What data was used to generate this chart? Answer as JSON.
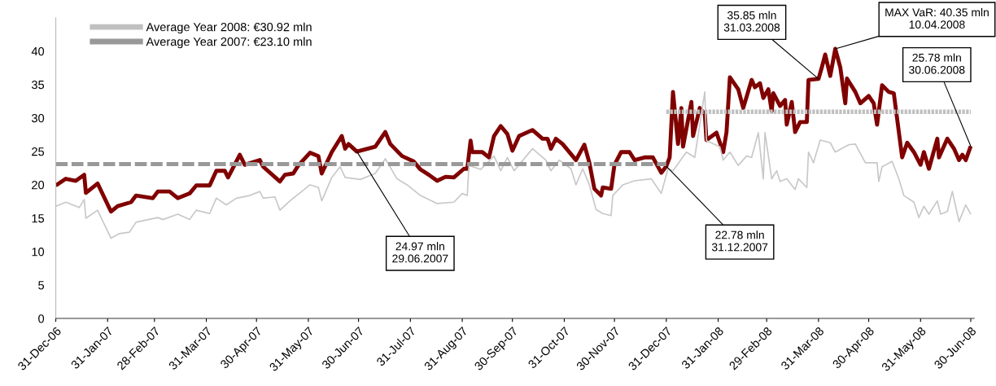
{
  "chart_data": {
    "type": "line",
    "series": [
      {
        "color": "#800000",
        "x": [
          "2006-12-31",
          "2007-01-06",
          "2007-01-12",
          "2007-01-17",
          "2007-01-18",
          "2007-01-25",
          "2007-02-02",
          "2007-02-06",
          "2007-02-14",
          "2007-02-17",
          "2007-02-27",
          "2007-03-02",
          "2007-03-09",
          "2007-03-14",
          "2007-03-21",
          "2007-03-25",
          "2007-04-02",
          "2007-04-06",
          "2007-04-11",
          "2007-04-13",
          "2007-04-20",
          "2007-04-23",
          "2007-05-02",
          "2007-05-04",
          "2007-05-14",
          "2007-05-17",
          "2007-05-22",
          "2007-05-25",
          "2007-06-01",
          "2007-06-06",
          "2007-06-08",
          "2007-06-14",
          "2007-06-20",
          "2007-06-22",
          "2007-06-24",
          "2007-06-29",
          "2007-07-10",
          "2007-07-16",
          "2007-07-19",
          "2007-07-26",
          "2007-08-02",
          "2007-08-06",
          "2007-08-11",
          "2007-08-16",
          "2007-08-21",
          "2007-08-26",
          "2007-09-01",
          "2007-09-03",
          "2007-09-05",
          "2007-09-06",
          "2007-09-12",
          "2007-09-16",
          "2007-09-19",
          "2007-09-23",
          "2007-09-27",
          "2007-09-30",
          "2007-10-04",
          "2007-10-12",
          "2007-10-18",
          "2007-10-21",
          "2007-10-23",
          "2007-10-26",
          "2007-10-30",
          "2007-11-07",
          "2007-11-12",
          "2007-11-15",
          "2007-11-18",
          "2007-11-22",
          "2007-11-23",
          "2007-11-28",
          "2007-11-30",
          "2007-12-04",
          "2007-12-09",
          "2007-12-12",
          "2007-12-18",
          "2007-12-23",
          "2007-12-28",
          "2007-12-31",
          "2008-01-02",
          "2008-01-04",
          "2008-01-07",
          "2008-01-09",
          "2008-01-10",
          "2008-01-15",
          "2008-01-16",
          "2008-01-20",
          "2008-01-23",
          "2008-01-24",
          "2008-01-30",
          "2008-02-03",
          "2008-02-05",
          "2008-02-07",
          "2008-02-12",
          "2008-02-15",
          "2008-02-20",
          "2008-02-22",
          "2008-02-25",
          "2008-02-27",
          "2008-03-01",
          "2008-03-03",
          "2008-03-04",
          "2008-03-08",
          "2008-03-11",
          "2008-03-12",
          "2008-03-15",
          "2008-03-17",
          "2008-03-20",
          "2008-03-24",
          "2008-03-25",
          "2008-03-31",
          "2008-04-02",
          "2008-04-04",
          "2008-04-07",
          "2008-04-10",
          "2008-04-13",
          "2008-04-16",
          "2008-04-17",
          "2008-04-22",
          "2008-04-25",
          "2008-04-30",
          "2008-05-03",
          "2008-05-05",
          "2008-05-08",
          "2008-05-12",
          "2008-05-15",
          "2008-05-20",
          "2008-05-23",
          "2008-05-27",
          "2008-05-31",
          "2008-06-02",
          "2008-06-05",
          "2008-06-10",
          "2008-06-11",
          "2008-06-16",
          "2008-06-20",
          "2008-06-23",
          "2008-06-25",
          "2008-06-27",
          "2008-06-30"
        ],
        "values": [
          19.9,
          20.9,
          20.6,
          21.5,
          18.8,
          20.2,
          16.0,
          16.8,
          17.4,
          18.4,
          18.0,
          19.0,
          19.0,
          18.0,
          18.7,
          19.9,
          19.9,
          22.1,
          22.1,
          21.1,
          24.5,
          23.0,
          23.7,
          22.7,
          20.5,
          21.5,
          21.7,
          22.9,
          24.8,
          24.3,
          21.7,
          24.9,
          27.3,
          25.4,
          26.1,
          24.97,
          25.7,
          27.9,
          26.1,
          24.3,
          23.5,
          22.3,
          21.5,
          20.6,
          21.2,
          21.1,
          22.4,
          22.4,
          26.6,
          24.9,
          24.9,
          24.1,
          27.3,
          28.8,
          27.6,
          25.1,
          27.3,
          28.2,
          26.9,
          26.9,
          25.4,
          26.9,
          26.1,
          23.7,
          26.0,
          23.3,
          19.4,
          18.4,
          19.6,
          19.4,
          23.0,
          24.9,
          24.9,
          23.7,
          24.1,
          24.1,
          21.8,
          22.78,
          24.1,
          33.9,
          26.1,
          31.5,
          25.7,
          32.4,
          27.3,
          31.5,
          30.6,
          26.7,
          27.8,
          24.9,
          27.9,
          36.1,
          34.3,
          31.5,
          35.7,
          34.6,
          35.2,
          33.0,
          34.3,
          31.0,
          33.7,
          31.8,
          32.7,
          29.0,
          32.4,
          27.9,
          29.4,
          29.4,
          35.7,
          35.85,
          37.6,
          39.5,
          36.3,
          40.35,
          37.6,
          32.2,
          35.9,
          33.9,
          32.2,
          33.3,
          32.2,
          29.0,
          34.9,
          33.9,
          33.7,
          24.1,
          26.3,
          24.9,
          23.0,
          24.9,
          22.4,
          26.9,
          24.1,
          26.9,
          25.4,
          23.7,
          24.5,
          23.7,
          25.78
        ]
      },
      {
        "color": "#c8c8c8",
        "x": [
          "2006-12-31",
          "2007-01-06",
          "2007-01-14",
          "2007-01-17",
          "2007-01-18",
          "2007-01-25",
          "2007-02-02",
          "2007-02-07",
          "2007-02-13",
          "2007-02-17",
          "2007-03-02",
          "2007-03-05",
          "2007-03-14",
          "2007-03-21",
          "2007-03-25",
          "2007-04-02",
          "2007-04-06",
          "2007-04-12",
          "2007-04-18",
          "2007-04-26",
          "2007-05-02",
          "2007-05-04",
          "2007-05-11",
          "2007-05-14",
          "2007-05-20",
          "2007-05-26",
          "2007-06-01",
          "2007-06-06",
          "2007-06-08",
          "2007-06-14",
          "2007-06-19",
          "2007-06-22",
          "2007-07-01",
          "2007-07-10",
          "2007-07-16",
          "2007-07-23",
          "2007-07-29",
          "2007-08-06",
          "2007-08-16",
          "2007-08-26",
          "2007-08-31",
          "2007-09-03",
          "2007-09-04",
          "2007-09-11",
          "2007-09-19",
          "2007-09-23",
          "2007-09-27",
          "2007-10-01",
          "2007-10-12",
          "2007-10-20",
          "2007-10-23",
          "2007-10-28",
          "2007-11-04",
          "2007-11-07",
          "2007-11-11",
          "2007-11-15",
          "2007-11-19",
          "2007-11-23",
          "2007-11-28",
          "2007-11-29",
          "2007-12-05",
          "2007-12-12",
          "2007-12-22",
          "2007-12-28",
          "2008-01-01",
          "2008-01-04",
          "2008-01-12",
          "2008-01-17",
          "2008-01-23",
          "2008-01-24",
          "2008-02-01",
          "2008-02-03",
          "2008-02-07",
          "2008-02-12",
          "2008-02-17",
          "2008-02-20",
          "2008-02-24",
          "2008-02-27",
          "2008-02-28",
          "2008-03-03",
          "2008-03-06",
          "2008-03-08",
          "2008-03-12",
          "2008-03-17",
          "2008-03-19",
          "2008-03-24",
          "2008-03-25",
          "2008-03-28",
          "2008-04-01",
          "2008-04-07",
          "2008-04-10",
          "2008-04-18",
          "2008-04-22",
          "2008-04-28",
          "2008-05-05",
          "2008-05-06",
          "2008-05-08",
          "2008-05-14",
          "2008-05-18",
          "2008-05-21",
          "2008-05-27",
          "2008-05-30",
          "2008-06-02",
          "2008-06-05",
          "2008-06-10",
          "2008-06-12",
          "2008-06-16",
          "2008-06-19",
          "2008-06-23",
          "2008-06-27",
          "2008-06-30"
        ],
        "values": [
          16.8,
          17.4,
          16.6,
          17.8,
          15.0,
          16.2,
          12.0,
          12.7,
          12.9,
          14.4,
          15.1,
          14.8,
          15.6,
          14.8,
          16.2,
          15.7,
          18.0,
          17.0,
          18.0,
          18.4,
          19.0,
          18.0,
          18.2,
          16.2,
          17.6,
          18.8,
          20.0,
          19.6,
          17.6,
          21.1,
          22.7,
          21.1,
          20.8,
          21.7,
          23.9,
          20.9,
          20.0,
          18.4,
          17.2,
          17.4,
          18.7,
          18.4,
          22.9,
          22.3,
          24.3,
          22.1,
          24.1,
          22.1,
          25.4,
          23.7,
          22.1,
          23.7,
          22.4,
          20.0,
          22.4,
          20.0,
          16.3,
          15.7,
          15.4,
          18.4,
          20.0,
          20.6,
          20.9,
          18.7,
          22.4,
          22.1,
          24.9,
          24.1,
          33.9,
          26.6,
          25.7,
          23.7,
          24.9,
          22.9,
          24.3,
          24.1,
          27.8,
          20.9,
          27.8,
          20.9,
          22.1,
          20.5,
          20.9,
          19.3,
          20.9,
          19.6,
          24.9,
          23.3,
          26.7,
          26.3,
          24.9,
          26.0,
          26.1,
          23.3,
          23.3,
          20.5,
          22.7,
          23.5,
          20.9,
          18.4,
          17.4,
          15.1,
          16.8,
          15.6,
          17.6,
          15.6,
          16.0,
          19.0,
          14.5,
          17.0,
          15.6
        ]
      },
      {
        "name": "Average Year 2008: €30.92 mln",
        "color": "#c0c0c0",
        "line_style": "dotted",
        "x": [
          "2007-12-31",
          "2008-06-30"
        ],
        "values": [
          30.92,
          30.92
        ]
      },
      {
        "name": "Average Year 2007: €23.10 mln",
        "color": "#999999",
        "line_style": "dashed",
        "x": [
          "2006-12-31",
          "2007-12-31"
        ],
        "values": [
          23.1,
          23.1
        ]
      }
    ],
    "xlim": [
      "2006-12-31",
      "2008-07-02"
    ],
    "xticks": [
      {
        "value": "2006-12-31",
        "label": "31-Dec-06"
      },
      {
        "value": "2007-01-31",
        "label": "31-Jan-07"
      },
      {
        "value": "2007-02-28",
        "label": "28-Feb-07"
      },
      {
        "value": "2007-03-31",
        "label": "31-Mar-07"
      },
      {
        "value": "2007-04-30",
        "label": "30-Apr-07"
      },
      {
        "value": "2007-05-31",
        "label": "31-May-07"
      },
      {
        "value": "2007-06-30",
        "label": "30-Jun-07"
      },
      {
        "value": "2007-07-31",
        "label": "31-Jul-07"
      },
      {
        "value": "2007-08-31",
        "label": "31-Aug-07"
      },
      {
        "value": "2007-09-30",
        "label": "30-Sep-07"
      },
      {
        "value": "2007-10-31",
        "label": "31-Oct-07"
      },
      {
        "value": "2007-11-30",
        "label": "30-Nov-07"
      },
      {
        "value": "2007-12-31",
        "label": "31-Dec-07"
      },
      {
        "value": "2008-01-31",
        "label": "31-Jan-08"
      },
      {
        "value": "2008-02-29",
        "label": "29-Feb-08"
      },
      {
        "value": "2008-03-31",
        "label": "31-Mar-08"
      },
      {
        "value": "2008-04-30",
        "label": "30-Apr-08"
      },
      {
        "value": "2008-05-31",
        "label": "31-May-08"
      },
      {
        "value": "2008-06-30",
        "label": "30-Jun-08"
      }
    ],
    "ylim": [
      0,
      45
    ],
    "yticks": [
      0,
      5,
      10,
      15,
      20,
      25,
      30,
      35,
      40
    ],
    "grid": false,
    "legend": "top left",
    "annotations": [
      {
        "text": "24.97 mln\n29.06.2007",
        "x": "2007-06-29",
        "y": 24.97
      },
      {
        "text": "22.78 mln\n31.12.2007",
        "x": "2007-12-31",
        "y": 22.78
      },
      {
        "text": "35.85 mln\n31.03.2008",
        "x": "2008-03-31",
        "y": 35.85
      },
      {
        "text": "MAX VaR: 40.35 mln\n10.04.2008",
        "x": "2008-04-10",
        "y": 40.35
      },
      {
        "text": "25.78 mln\n30.06.2008",
        "x": "2008-06-30",
        "y": 25.78
      }
    ]
  }
}
